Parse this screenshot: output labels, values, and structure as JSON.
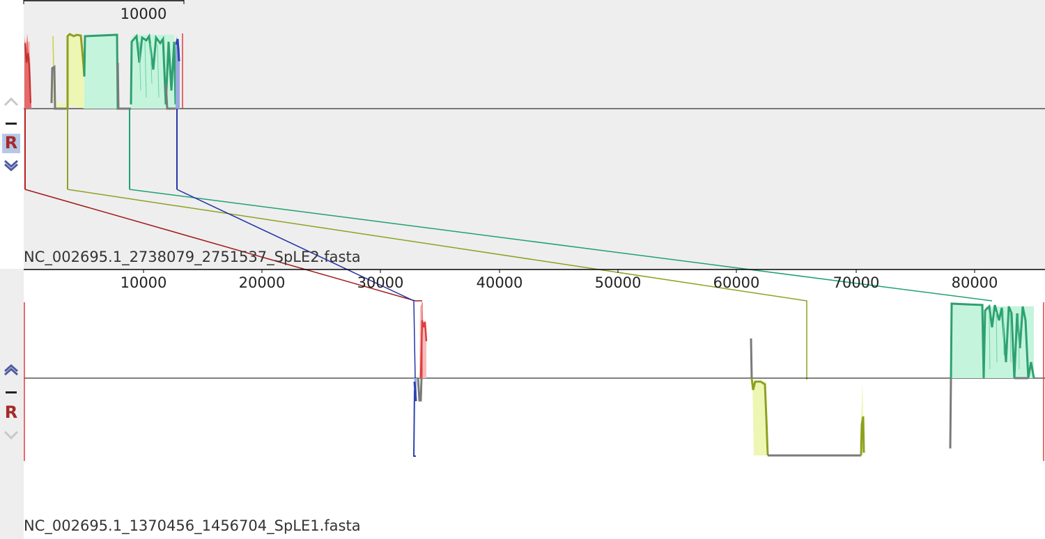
{
  "genomes": [
    {
      "name": "NC_002695.1_2738079_2751537_SpLE2.fasta",
      "ticks": [
        "10000"
      ],
      "controls": {
        "up": "move-up",
        "hide": "hide",
        "reverse": "R",
        "down": "move-down",
        "reverse_active": true
      }
    },
    {
      "name": "NC_002695.1_1370456_1456704_SpLE1.fasta",
      "ticks": [
        "10000",
        "20000",
        "30000",
        "40000",
        "50000",
        "60000",
        "70000",
        "80000"
      ],
      "controls": {
        "up": "move-up",
        "hide": "hide",
        "reverse": "R",
        "down": "move-down",
        "reverse_active": false
      }
    }
  ],
  "colors": {
    "red_block": "#e03c3c",
    "yellow_block": "#c8d23c",
    "olive_line": "#8ea020",
    "green_block": "#2ea070",
    "blue_block": "#2c44b0",
    "gray_line": "#7a7a7a",
    "connector_red": "#a01818",
    "connector_olive": "#8ea020",
    "connector_green": "#20a070",
    "connector_blue": "#2434a8"
  }
}
